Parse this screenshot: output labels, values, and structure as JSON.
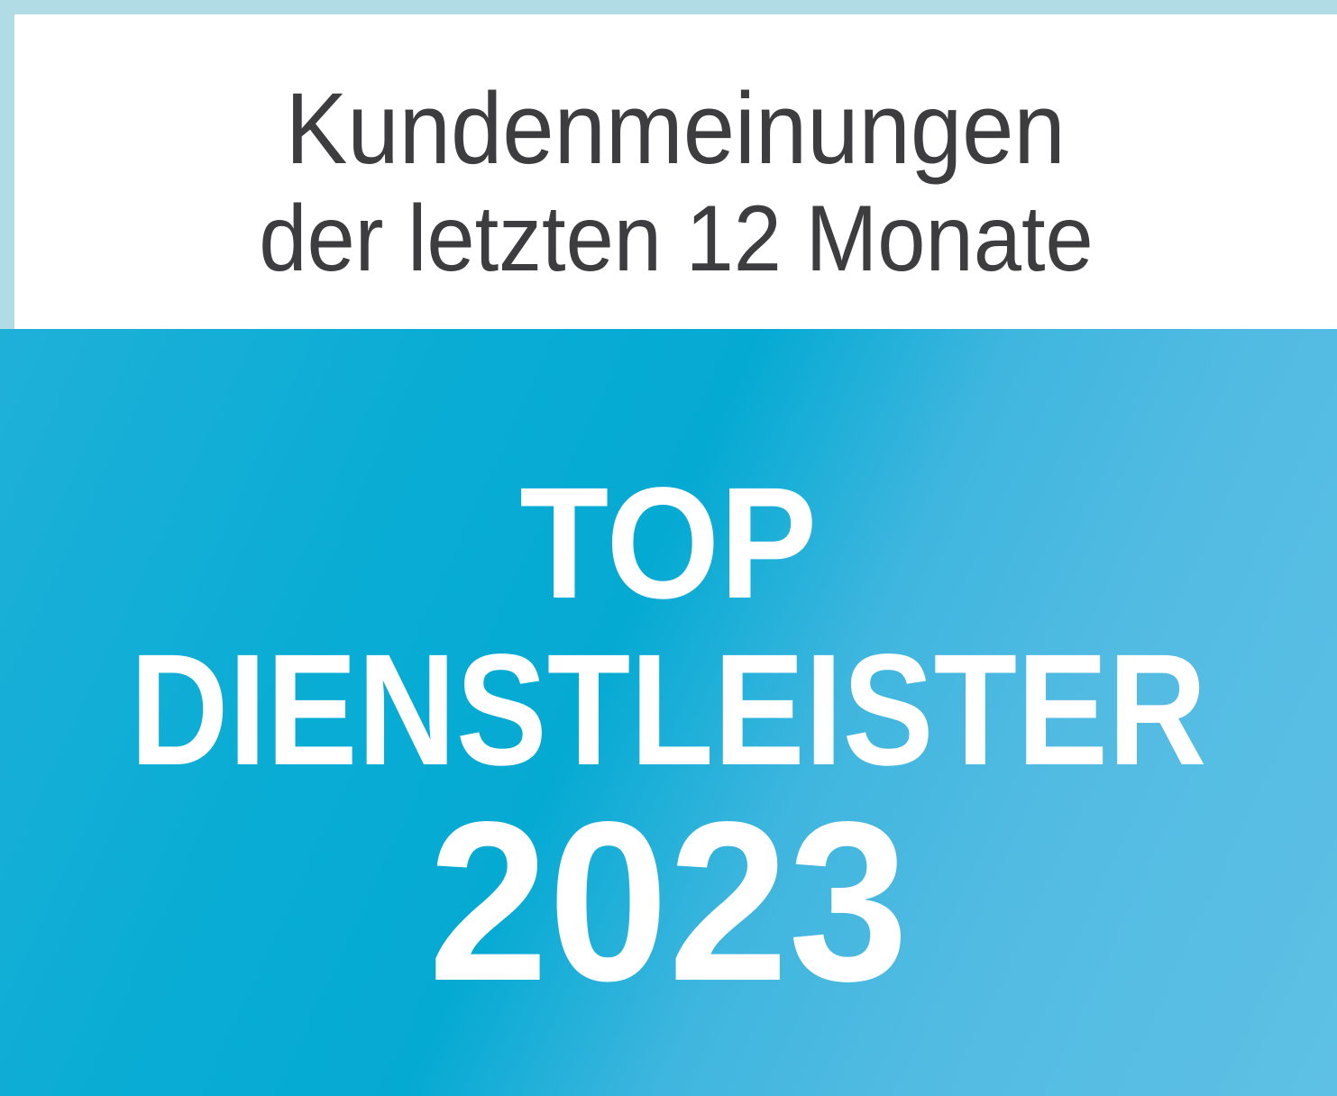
{
  "header": {
    "line1": "Kundenmeinungen",
    "line2": "der letzten 12 Monate"
  },
  "award": {
    "line1": "TOP",
    "line2": "DIENSTLEISTER",
    "year": "2023"
  },
  "colors": {
    "frame": "#b1dce6",
    "header_background": "#ffffff",
    "header_text": "#3d3d3f",
    "award_background": "#05aad3",
    "award_text": "#ffffff"
  }
}
